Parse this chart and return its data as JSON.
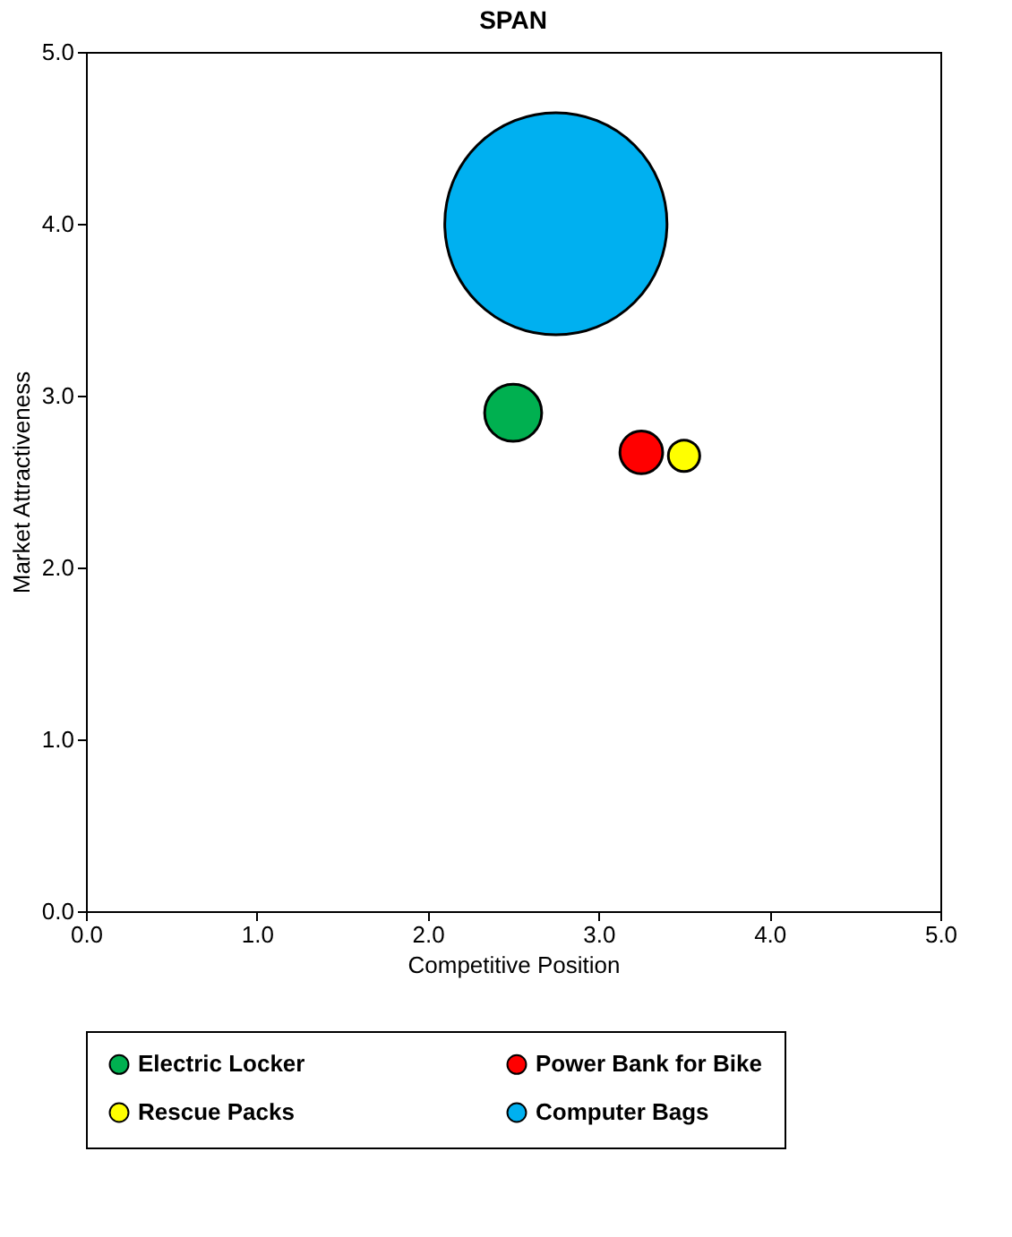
{
  "chart_data": {
    "type": "bubble",
    "title": "SPAN",
    "xlabel": "Competitive Position",
    "ylabel": "Market Attractiveness",
    "xlim": [
      0,
      5
    ],
    "ylim": [
      0,
      5
    ],
    "xticks": [
      {
        "value": 0,
        "label": "0.0"
      },
      {
        "value": 1,
        "label": "1.0"
      },
      {
        "value": 2,
        "label": "2.0"
      },
      {
        "value": 3,
        "label": "3.0"
      },
      {
        "value": 4,
        "label": "4.0"
      },
      {
        "value": 5,
        "label": "5.0"
      }
    ],
    "yticks": [
      {
        "value": 0,
        "label": "0.0"
      },
      {
        "value": 1,
        "label": "1.0"
      },
      {
        "value": 2,
        "label": "2.0"
      },
      {
        "value": 3,
        "label": "3.0"
      },
      {
        "value": 4,
        "label": "4.0"
      },
      {
        "value": 5,
        "label": "5.0"
      }
    ],
    "grid": false,
    "legend": "bottom",
    "series": [
      {
        "name": "Electric Locker",
        "color": "#00b050",
        "x": [
          2.5
        ],
        "values": [
          2.9
        ],
        "sizes": [
          0.066
        ]
      },
      {
        "name": "Power Bank for Bike",
        "color": "#ff0000",
        "x": [
          3.25
        ],
        "values": [
          2.67
        ],
        "sizes": [
          0.037
        ]
      },
      {
        "name": "Rescue Packs",
        "color": "#ffff00",
        "x": [
          3.5
        ],
        "values": [
          2.65
        ],
        "sizes": [
          0.02
        ]
      },
      {
        "name": "Computer Bags",
        "color": "#00b0f0",
        "x": [
          2.75
        ],
        "values": [
          4.0
        ],
        "sizes": [
          1
        ]
      }
    ]
  }
}
